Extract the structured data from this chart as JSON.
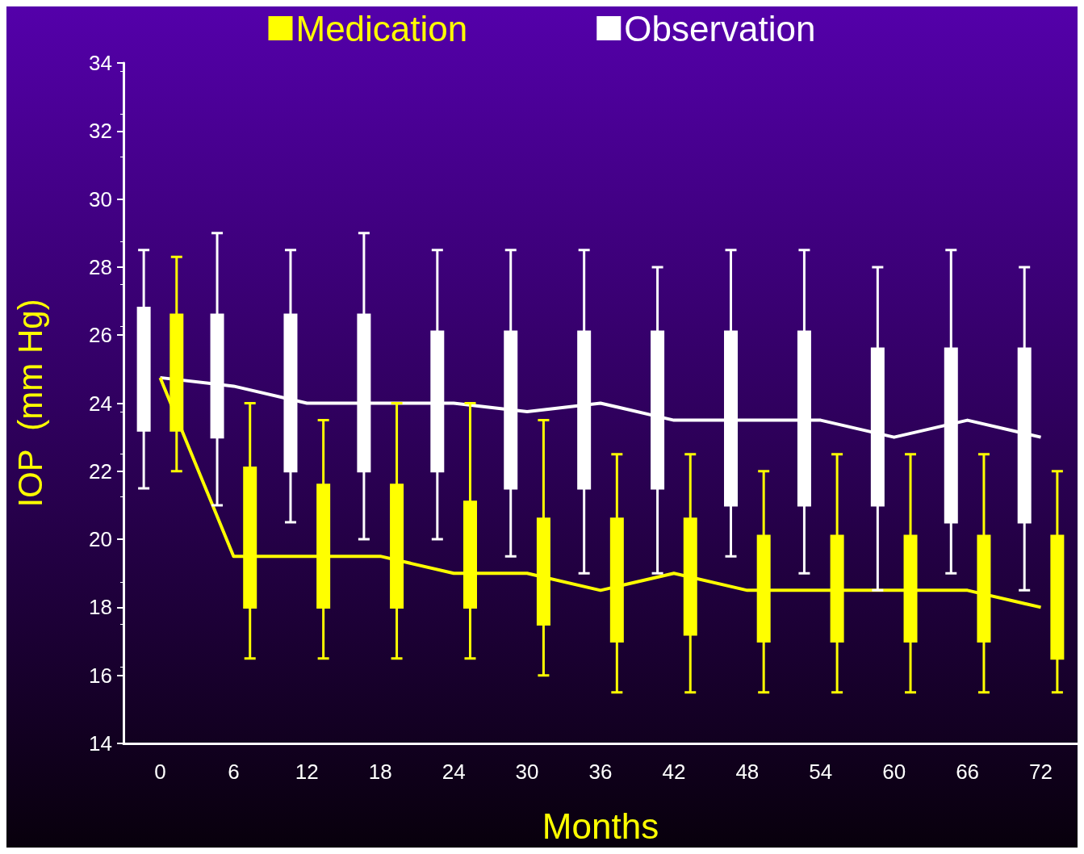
{
  "chart_data": {
    "type": "box",
    "xlabel": "Months",
    "ylabel": "IOP  (mm Hg)",
    "categories": [
      "0",
      "6",
      "12",
      "18",
      "24",
      "30",
      "36",
      "42",
      "48",
      "54",
      "60",
      "66",
      "72"
    ],
    "ylim": [
      14,
      34
    ],
    "yticks": [
      14,
      16,
      18,
      20,
      22,
      24,
      26,
      28,
      30,
      32,
      34
    ],
    "grid": false,
    "legend": "top",
    "series": [
      {
        "name": "Medication",
        "color": "#ffff00",
        "boxes": [
          {
            "low": 22,
            "q1": 23.2,
            "median": 24.75,
            "q3": 26.6,
            "high": 28.3
          },
          {
            "low": 16.5,
            "q1": 18,
            "median": 19.5,
            "q3": 22.1,
            "high": 24
          },
          {
            "low": 16.5,
            "q1": 18,
            "median": 19.5,
            "q3": 21.6,
            "high": 23.5
          },
          {
            "low": 16.5,
            "q1": 18,
            "median": 19.5,
            "q3": 21.6,
            "high": 24
          },
          {
            "low": 16.5,
            "q1": 18,
            "median": 19,
            "q3": 21.1,
            "high": 24
          },
          {
            "low": 16,
            "q1": 17.5,
            "median": 19,
            "q3": 20.6,
            "high": 23.5
          },
          {
            "low": 15.5,
            "q1": 17,
            "median": 18.5,
            "q3": 20.6,
            "high": 22.5
          },
          {
            "low": 15.5,
            "q1": 17.2,
            "median": 19,
            "q3": 20.6,
            "high": 22.5
          },
          {
            "low": 15.5,
            "q1": 17,
            "median": 18.5,
            "q3": 20.1,
            "high": 22
          },
          {
            "low": 15.5,
            "q1": 17,
            "median": 18.5,
            "q3": 20.1,
            "high": 22.5
          },
          {
            "low": 15.5,
            "q1": 17,
            "median": 18.5,
            "q3": 20.1,
            "high": 22.5
          },
          {
            "low": 15.5,
            "q1": 17,
            "median": 18.5,
            "q3": 20.1,
            "high": 22.5
          },
          {
            "low": 15.5,
            "q1": 16.5,
            "median": 18,
            "q3": 20.1,
            "high": 22
          }
        ]
      },
      {
        "name": "Observation",
        "color": "#ffffff",
        "boxes": [
          {
            "low": 21.5,
            "q1": 23.2,
            "median": 24.75,
            "q3": 26.8,
            "high": 28.5
          },
          {
            "low": 21,
            "q1": 23,
            "median": 24.5,
            "q3": 26.6,
            "high": 29
          },
          {
            "low": 20.5,
            "q1": 22,
            "median": 24,
            "q3": 26.6,
            "high": 28.5
          },
          {
            "low": 20,
            "q1": 22,
            "median": 24,
            "q3": 26.6,
            "high": 29
          },
          {
            "low": 20,
            "q1": 22,
            "median": 24,
            "q3": 26.1,
            "high": 28.5
          },
          {
            "low": 19.5,
            "q1": 21.5,
            "median": 23.75,
            "q3": 26.1,
            "high": 28.5
          },
          {
            "low": 19,
            "q1": 21.5,
            "median": 24,
            "q3": 26.1,
            "high": 28.5
          },
          {
            "low": 19,
            "q1": 21.5,
            "median": 23.5,
            "q3": 26.1,
            "high": 28
          },
          {
            "low": 19.5,
            "q1": 21,
            "median": 23.5,
            "q3": 26.1,
            "high": 28.5
          },
          {
            "low": 19,
            "q1": 21,
            "median": 23.5,
            "q3": 26.1,
            "high": 28.5
          },
          {
            "low": 18.5,
            "q1": 21,
            "median": 23,
            "q3": 25.6,
            "high": 28
          },
          {
            "low": 19,
            "q1": 20.5,
            "median": 23.5,
            "q3": 25.6,
            "high": 28.5
          },
          {
            "low": 18.5,
            "q1": 20.5,
            "median": 23,
            "q3": 25.6,
            "high": 28
          }
        ]
      },
      {
        "type": "line",
        "color": "#ffffff",
        "marker": "none",
        "values": [
          24.75,
          24.5,
          24,
          24,
          24,
          23.75,
          24,
          23.5,
          23.5,
          23.5,
          23,
          23.5,
          23
        ]
      },
      {
        "type": "line",
        "color": "#ffff00",
        "marker": "none",
        "values": [
          24.75,
          19.5,
          19.5,
          19.5,
          19,
          19,
          18.5,
          19,
          18.5,
          18.5,
          18.5,
          18.5,
          18
        ]
      }
    ]
  }
}
